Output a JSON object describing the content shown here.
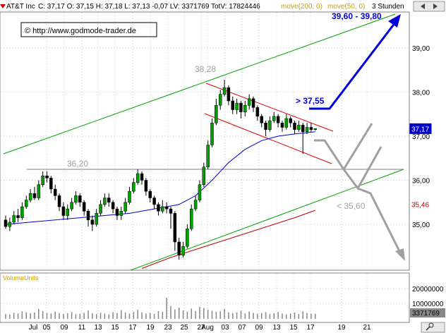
{
  "header": {
    "symbol": "AT&T Inc",
    "ohlc_text": "C: 37,17  O: 37,15  H: 37,18  L: 37,13  -0,07  LV: 3371769  TotV: 17824446",
    "ma200_label": "move(200, 0)",
    "ma50_label": "move(50, 0)",
    "timeframe": "3 Stunden"
  },
  "copyright": "© http://www.godmode-trader.de",
  "volume_label": "VolumeUnits",
  "colors": {
    "up_candle": "#00a000",
    "down_candle": "#000000",
    "ma200": "#c00000",
    "ma50": "#0000cc",
    "trend": "#00a000",
    "channel": "#e00000",
    "projection_blue": "#0000dd",
    "projection_gray": "#a0a0a0",
    "level_line": "#808080",
    "header_ma_text": "#d0a000"
  },
  "annotations": {
    "high_label": "38,28",
    "support_label": "36,20",
    "breakout_label": "> 37,55",
    "target_label": "39,60 - 39,80",
    "downside_label": "< 35,60"
  },
  "chart_data": {
    "type": "candlestick",
    "price_axis": {
      "ticks": [
        "39,00",
        "38,00",
        "37,00",
        "36,00",
        "35,00"
      ],
      "ylim": [
        34.0,
        39.8
      ]
    },
    "price_markers": [
      {
        "label": "37,17",
        "value": 37.17
      },
      {
        "label": "35,46",
        "value": 35.46
      }
    ],
    "volume_axis": {
      "ticks": [
        "20000000",
        "10000000"
      ],
      "last_label": "3371769"
    },
    "x_labels": [
      "Jul",
      "05",
      "09",
      "11",
      "13",
      "15",
      "17",
      "19",
      "23",
      "25",
      "27",
      "Aug",
      "03",
      "07",
      "09",
      "13",
      "15",
      "17",
      "19",
      "21"
    ],
    "support_level": 36.2,
    "candles": [
      [
        35.1,
        34.95,
        35.2,
        34.9
      ],
      [
        34.95,
        35.05,
        35.15,
        34.85
      ],
      [
        35.05,
        35.2,
        35.3,
        35.0
      ],
      [
        35.2,
        35.15,
        35.35,
        35.05
      ],
      [
        35.15,
        35.4,
        35.5,
        35.1
      ],
      [
        35.4,
        35.55,
        35.65,
        35.35
      ],
      [
        35.55,
        35.7,
        35.8,
        35.5
      ],
      [
        35.7,
        35.6,
        35.85,
        35.55
      ],
      [
        35.6,
        35.9,
        36.0,
        35.55
      ],
      [
        35.9,
        36.1,
        36.2,
        35.85
      ],
      [
        36.1,
        36.05,
        36.2,
        35.95
      ],
      [
        36.05,
        35.8,
        36.1,
        35.7
      ],
      [
        35.8,
        35.65,
        35.9,
        35.55
      ],
      [
        35.65,
        35.4,
        35.7,
        35.3
      ],
      [
        35.4,
        35.2,
        35.5,
        35.1
      ],
      [
        35.2,
        35.35,
        35.45,
        35.1
      ],
      [
        35.35,
        35.5,
        35.6,
        35.3
      ],
      [
        35.5,
        35.65,
        35.75,
        35.45
      ],
      [
        35.65,
        35.5,
        35.7,
        35.4
      ],
      [
        35.5,
        35.3,
        35.55,
        35.2
      ],
      [
        35.3,
        35.1,
        35.35,
        34.95
      ],
      [
        35.1,
        35.0,
        35.2,
        34.85
      ],
      [
        35.0,
        35.25,
        35.35,
        34.95
      ],
      [
        35.25,
        35.45,
        35.55,
        35.2
      ],
      [
        35.45,
        35.6,
        35.7,
        35.4
      ],
      [
        35.6,
        35.5,
        35.7,
        35.4
      ],
      [
        35.5,
        35.35,
        35.55,
        35.25
      ],
      [
        35.35,
        35.2,
        35.4,
        35.1
      ],
      [
        35.2,
        35.3,
        35.4,
        35.1
      ],
      [
        35.3,
        35.5,
        35.6,
        35.25
      ],
      [
        35.5,
        35.75,
        35.85,
        35.45
      ],
      [
        35.75,
        35.95,
        36.05,
        35.7
      ],
      [
        35.95,
        36.15,
        36.25,
        35.9
      ],
      [
        36.15,
        36.0,
        36.2,
        35.9
      ],
      [
        36.0,
        35.75,
        36.05,
        35.65
      ],
      [
        35.75,
        35.6,
        35.8,
        35.5
      ],
      [
        35.6,
        35.45,
        35.65,
        35.35
      ],
      [
        35.45,
        35.3,
        35.5,
        35.2
      ],
      [
        35.3,
        35.4,
        35.55,
        35.25
      ],
      [
        35.4,
        35.35,
        35.5,
        35.25
      ],
      [
        35.35,
        35.25,
        35.4,
        34.9
      ],
      [
        35.25,
        34.6,
        35.3,
        34.4
      ],
      [
        34.6,
        34.3,
        34.7,
        34.2
      ],
      [
        34.3,
        34.5,
        34.6,
        34.25
      ],
      [
        34.5,
        34.9,
        35.0,
        34.45
      ],
      [
        34.9,
        35.35,
        35.45,
        34.85
      ],
      [
        35.35,
        35.55,
        35.65,
        35.3
      ],
      [
        35.55,
        35.9,
        36.0,
        35.5
      ],
      [
        35.9,
        36.3,
        36.4,
        35.85
      ],
      [
        36.3,
        36.8,
        36.9,
        36.25
      ],
      [
        36.8,
        37.3,
        37.4,
        36.75
      ],
      [
        37.3,
        37.7,
        37.85,
        37.25
      ],
      [
        37.7,
        37.95,
        38.05,
        37.6
      ],
      [
        37.95,
        38.1,
        38.28,
        37.9
      ],
      [
        38.1,
        37.8,
        38.15,
        37.7
      ],
      [
        37.8,
        37.6,
        37.9,
        37.5
      ],
      [
        37.6,
        37.75,
        37.85,
        37.5
      ],
      [
        37.75,
        37.55,
        37.8,
        37.4
      ],
      [
        37.55,
        37.7,
        37.8,
        37.45
      ],
      [
        37.7,
        37.85,
        37.95,
        37.6
      ],
      [
        37.85,
        37.65,
        37.9,
        37.55
      ],
      [
        37.65,
        37.45,
        37.7,
        37.35
      ],
      [
        37.45,
        37.3,
        37.5,
        37.2
      ],
      [
        37.3,
        37.15,
        37.35,
        37.0
      ],
      [
        37.15,
        37.35,
        37.45,
        37.1
      ],
      [
        37.35,
        37.45,
        37.55,
        37.3
      ],
      [
        37.45,
        37.3,
        37.5,
        37.2
      ],
      [
        37.3,
        37.2,
        37.35,
        37.1
      ],
      [
        37.2,
        37.4,
        37.5,
        37.15
      ],
      [
        37.4,
        37.3,
        37.45,
        37.2
      ],
      [
        37.3,
        37.15,
        37.35,
        37.05
      ],
      [
        37.15,
        37.25,
        37.35,
        37.1
      ],
      [
        37.25,
        37.1,
        37.3,
        36.6
      ],
      [
        37.1,
        37.2,
        37.3,
        37.05
      ],
      [
        37.2,
        37.15,
        37.3,
        37.1
      ],
      [
        37.15,
        37.17,
        37.18,
        37.13
      ]
    ],
    "ma50": [
      [
        0,
        35.0
      ],
      [
        6,
        35.05
      ],
      [
        12,
        35.1
      ],
      [
        18,
        35.15
      ],
      [
        24,
        35.2
      ],
      [
        30,
        35.25
      ],
      [
        36,
        35.35
      ],
      [
        42,
        35.45
      ],
      [
        46,
        35.65
      ],
      [
        50,
        36.0
      ],
      [
        54,
        36.4
      ],
      [
        58,
        36.7
      ],
      [
        62,
        36.9
      ],
      [
        66,
        37.0
      ],
      [
        70,
        37.05
      ],
      [
        75,
        37.1
      ]
    ],
    "ma200": [
      [
        33,
        34.0
      ],
      [
        40,
        34.25
      ],
      [
        50,
        34.55
      ],
      [
        60,
        34.85
      ],
      [
        70,
        35.15
      ],
      [
        75,
        35.32
      ]
    ],
    "volume": [
      3.2,
      3.0,
      4.1,
      3.6,
      5.0,
      4.4,
      3.8,
      4.2,
      6.5,
      5.2,
      4.0,
      3.5,
      4.8,
      3.9,
      3.3,
      3.7,
      4.5,
      3.1,
      3.4,
      4.0,
      5.5,
      3.8,
      3.2,
      4.1,
      3.6,
      3.0,
      4.4,
      3.9,
      5.8,
      4.2,
      3.5,
      4.7,
      6.0,
      4.3,
      3.6,
      4.0,
      3.3,
      5.1,
      4.6,
      14.0,
      8.5,
      6.2,
      7.4,
      5.6,
      4.8,
      6.8,
      5.2,
      8.0,
      7.2,
      6.0,
      5.4,
      4.6,
      5.0,
      6.6,
      4.4,
      3.8,
      4.2,
      5.4,
      3.6,
      4.8,
      4.0,
      3.4,
      3.9,
      4.4,
      3.2,
      3.8,
      4.6,
      3.5,
      3.0,
      3.6,
      4.2,
      3.3,
      5.0,
      3.9,
      3.4,
      3.4
    ]
  }
}
